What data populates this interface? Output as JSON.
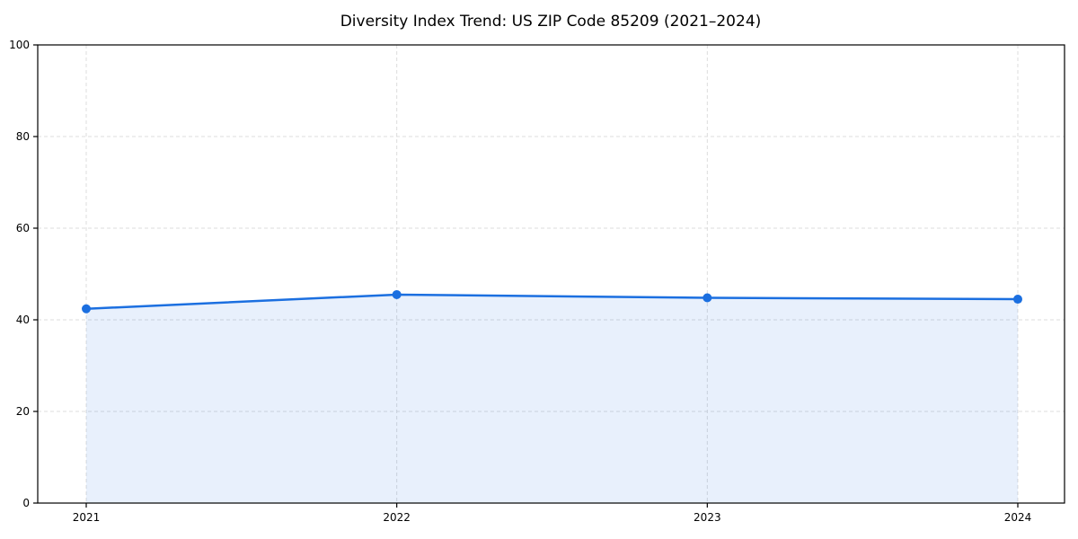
{
  "page": {
    "background": "#ffffff"
  },
  "chart_data": {
    "type": "area",
    "title": "Diversity Index Trend: US ZIP Code 85209 (2021–2024)",
    "categories": [
      "2021",
      "2022",
      "2023",
      "2024"
    ],
    "series": [
      {
        "name": "Diversity Index",
        "values": [
          42.4,
          45.5,
          44.8,
          44.5
        ]
      }
    ],
    "xlabel": "",
    "ylabel": "",
    "ylim": [
      0,
      100
    ],
    "yticks": [
      0,
      20,
      40,
      60,
      80,
      100
    ],
    "grid": true,
    "grid_style": "dashed",
    "legend": "none",
    "colors": {
      "line": "#1b6fe0",
      "marker": "#1b6fe0",
      "fill": "rgba(27, 111, 224, 0.10)",
      "grid": "#dcdcdc",
      "axis": "#000000",
      "text": "#000000",
      "background": "#ffffff"
    },
    "marker_radius": 5,
    "line_width": 2.5
  }
}
